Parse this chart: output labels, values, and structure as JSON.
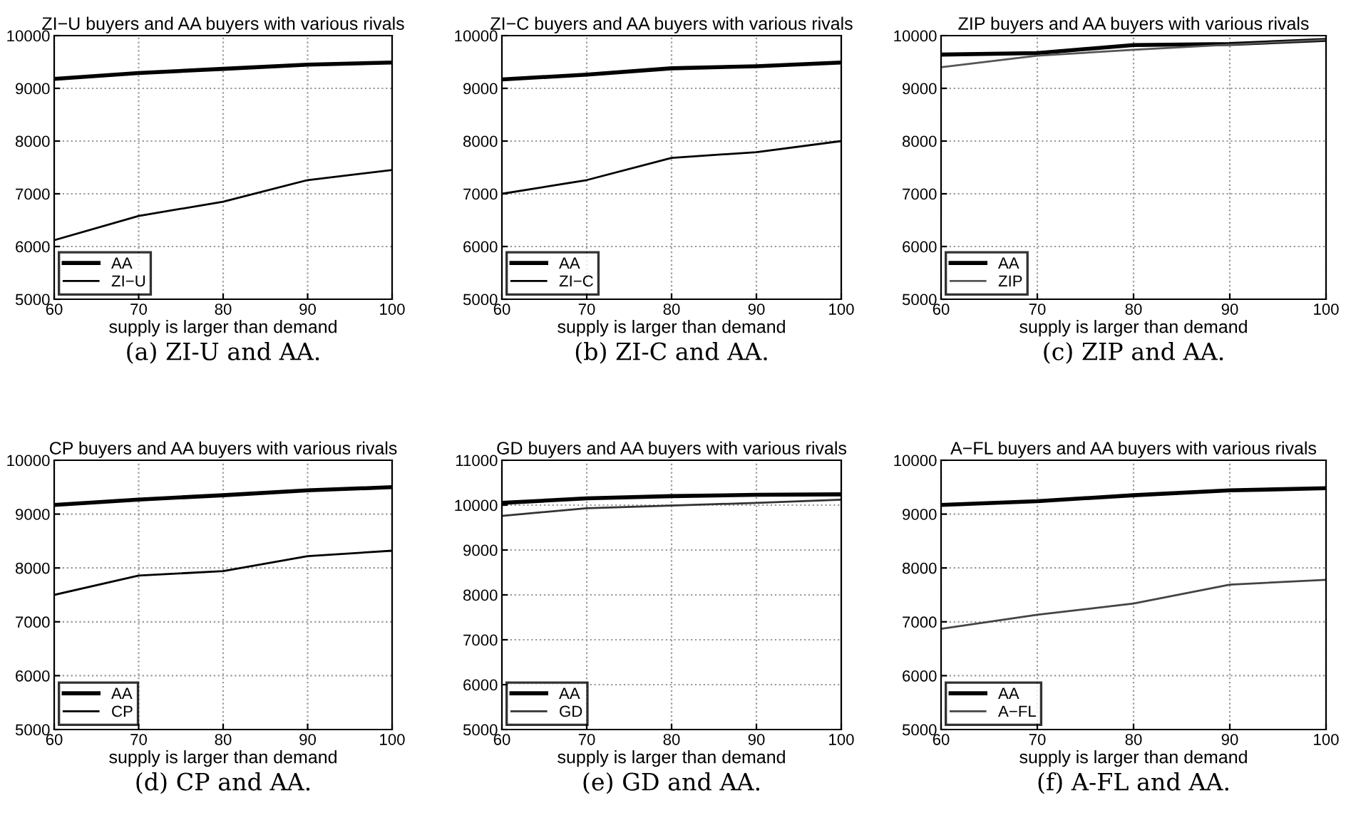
{
  "chart_data": [
    {
      "type": "line",
      "title": "ZI−U buyers and AA buyers with various rivals",
      "xlabel": "supply is larger than demand",
      "x": [
        60,
        70,
        80,
        90,
        100
      ],
      "xlim": [
        60,
        100
      ],
      "xticks": [
        60,
        70,
        80,
        90,
        100
      ],
      "ylim": [
        5000,
        10000
      ],
      "yticks": [
        5000,
        6000,
        7000,
        8000,
        9000,
        10000
      ],
      "grid": true,
      "legend": "bottom left",
      "annotations": [
        "(a) ZI-U and AA."
      ],
      "series": [
        {
          "name": "AA",
          "color": "#000000",
          "values": [
            9180,
            9290,
            9370,
            9450,
            9490
          ]
        },
        {
          "name": "ZI−U",
          "color": "#000000",
          "values": [
            6120,
            6580,
            6850,
            7260,
            7450
          ]
        }
      ]
    },
    {
      "type": "line",
      "title": "ZI−C buyers and AA buyers with various rivals",
      "xlabel": "supply is larger than demand",
      "x": [
        60,
        70,
        80,
        90,
        100
      ],
      "xlim": [
        60,
        100
      ],
      "xticks": [
        60,
        70,
        80,
        90,
        100
      ],
      "ylim": [
        5000,
        10000
      ],
      "yticks": [
        5000,
        6000,
        7000,
        8000,
        9000,
        10000
      ],
      "grid": true,
      "legend": "bottom left",
      "annotations": [
        "(b) ZI-C and AA."
      ],
      "series": [
        {
          "name": "AA",
          "color": "#000000",
          "values": [
            9170,
            9260,
            9380,
            9420,
            9490
          ]
        },
        {
          "name": "ZI−C",
          "color": "#000000",
          "values": [
            7000,
            7260,
            7680,
            7790,
            8000
          ]
        }
      ]
    },
    {
      "type": "line",
      "title": "ZIP buyers and AA buyers with various rivals",
      "xlabel": "supply is larger than demand",
      "x": [
        60,
        70,
        80,
        90,
        100
      ],
      "xlim": [
        60,
        100
      ],
      "xticks": [
        60,
        70,
        80,
        90,
        100
      ],
      "ylim": [
        5000,
        10000
      ],
      "yticks": [
        5000,
        6000,
        7000,
        8000,
        9000,
        10000
      ],
      "grid": true,
      "legend": "bottom left",
      "annotations": [
        "(c) ZIP and AA."
      ],
      "series": [
        {
          "name": "AA",
          "color": "#000000",
          "values": [
            9640,
            9670,
            9820,
            9840,
            9920
          ]
        },
        {
          "name": "ZIP",
          "color": "#555555",
          "values": [
            9400,
            9620,
            9730,
            9830,
            9920
          ]
        }
      ]
    },
    {
      "type": "line",
      "title": "CP buyers and AA buyers with various rivals",
      "xlabel": "supply is larger than demand",
      "x": [
        60,
        70,
        80,
        90,
        100
      ],
      "xlim": [
        60,
        100
      ],
      "xticks": [
        60,
        70,
        80,
        90,
        100
      ],
      "ylim": [
        5000,
        10000
      ],
      "yticks": [
        5000,
        6000,
        7000,
        8000,
        9000,
        10000
      ],
      "grid": true,
      "legend": "bottom left",
      "annotations": [
        "(d) CP and AA."
      ],
      "series": [
        {
          "name": "AA",
          "color": "#000000",
          "values": [
            9170,
            9270,
            9350,
            9440,
            9500
          ]
        },
        {
          "name": "CP",
          "color": "#000000",
          "values": [
            7500,
            7860,
            7940,
            8220,
            8320
          ]
        }
      ]
    },
    {
      "type": "line",
      "title": "GD buyers and AA buyers with various rivals",
      "xlabel": "supply is larger than demand",
      "x": [
        60,
        70,
        80,
        90,
        100
      ],
      "xlim": [
        60,
        100
      ],
      "xticks": [
        60,
        70,
        80,
        90,
        100
      ],
      "ylim": [
        5000,
        11000
      ],
      "yticks": [
        5000,
        6000,
        7000,
        8000,
        9000,
        10000,
        11000
      ],
      "grid": true,
      "legend": "bottom left",
      "annotations": [
        "(e) GD and AA."
      ],
      "series": [
        {
          "name": "AA",
          "color": "#000000",
          "values": [
            10050,
            10150,
            10200,
            10230,
            10240
          ]
        },
        {
          "name": "GD",
          "color": "#333333",
          "values": [
            9760,
            9930,
            9990,
            10050,
            10120
          ]
        }
      ]
    },
    {
      "type": "line",
      "title": "A−FL buyers and AA buyers with various rivals",
      "xlabel": "supply is larger than demand",
      "x": [
        60,
        70,
        80,
        90,
        100
      ],
      "xlim": [
        60,
        100
      ],
      "xticks": [
        60,
        70,
        80,
        90,
        100
      ],
      "ylim": [
        5000,
        10000
      ],
      "yticks": [
        5000,
        6000,
        7000,
        8000,
        9000,
        10000
      ],
      "grid": true,
      "legend": "bottom left",
      "annotations": [
        "(f) A-FL and AA."
      ],
      "series": [
        {
          "name": "AA",
          "color": "#000000",
          "values": [
            9170,
            9240,
            9350,
            9440,
            9480
          ]
        },
        {
          "name": "A−FL",
          "color": "#444444",
          "values": [
            6870,
            7130,
            7340,
            7690,
            7780
          ]
        }
      ]
    }
  ]
}
